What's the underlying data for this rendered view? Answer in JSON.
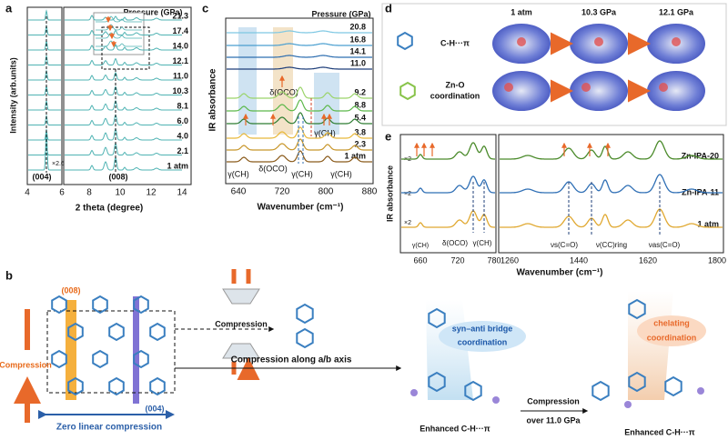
{
  "panels": {
    "a": {
      "label": "a",
      "legend_title": "Pressure (GPa)",
      "pressures": [
        "21.3",
        "17.4",
        "14.0",
        "12.1",
        "11.0",
        "10.3",
        "8.1",
        "6.0",
        "4.0",
        "2.1",
        "1 atm"
      ],
      "ylabel": "Intensity (arb.units)",
      "xlabel": "2 theta (degree)",
      "xticks": [
        "4",
        "6",
        "8",
        "10",
        "12",
        "14"
      ],
      "annotations": [
        "×2.6",
        "(004)",
        "(008)"
      ]
    },
    "b": {
      "label": "b",
      "planes": [
        "(008)",
        "(004)"
      ],
      "left_compression": "Compression",
      "zero": "Zero linear compression",
      "anvil_compression": "Compression",
      "along": "Compression along a/b axis",
      "syn_anti": [
        "syn–anti bridge",
        "coordination"
      ],
      "chelating": [
        "chelating",
        "coordination"
      ],
      "step": [
        "Compression",
        "over 11.0 GPa"
      ],
      "enhanced": [
        "Enhanced C-H···π",
        "Enhanced C-H···π"
      ]
    },
    "c": {
      "label": "c",
      "legend_title": "Pressure (GPa)",
      "pressures": [
        "20.8",
        "16.8",
        "14.1",
        "11.0",
        "9.2",
        "8.8",
        "5.4",
        "3.8",
        "2.3",
        "1 atm"
      ],
      "ylabel": "IR absorbance",
      "xlabel": "Wavenumber (cm⁻¹)",
      "xticks": [
        "640",
        "720",
        "800",
        "880"
      ],
      "annotations": [
        "δ(OCO)",
        "γ(CH)",
        "γ(CH)",
        "δ(OCO)",
        "γ(CH)",
        "γ(CH)"
      ]
    },
    "d": {
      "label": "d",
      "headers": [
        "1 atm",
        "10.3 GPa",
        "12.1 GPa"
      ],
      "rows": [
        [
          "C-H···π"
        ],
        [
          "Zn-O",
          "coordination"
        ]
      ]
    },
    "e": {
      "label": "e",
      "ylabel": "IR absorbance",
      "xlabel": "Wavenumber (cm⁻¹)",
      "xticks_left": [
        "660",
        "720",
        "780"
      ],
      "xticks_right": [
        "1260",
        "1440",
        "1620",
        "1800"
      ],
      "series": [
        "Zn-IPA-20",
        "Zn-IPA-11",
        "1 atm"
      ],
      "scales": [
        "×2",
        "×2",
        "×2"
      ],
      "annotations": [
        "γ(CH)",
        "δ(OCO)",
        "γ(CH)",
        "νs(C=O)",
        "ν(CC)ring",
        "νas(C=O)"
      ]
    }
  }
}
